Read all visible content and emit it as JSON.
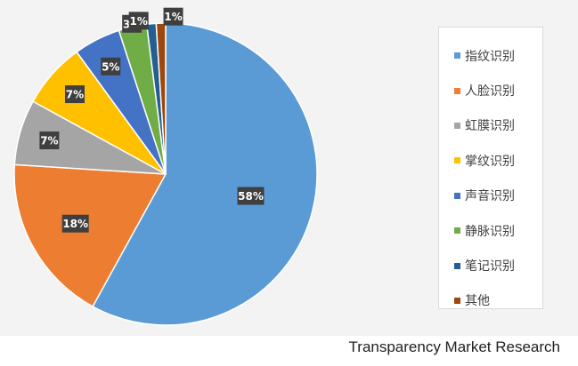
{
  "chart_data": {
    "type": "pie",
    "title": "",
    "slices": [
      {
        "label": "指纹识别",
        "value": 58,
        "display": "58%",
        "color": "#5b9bd5"
      },
      {
        "label": "人脸识别",
        "value": 18,
        "display": "18%",
        "color": "#ed7d31"
      },
      {
        "label": "虹膜识别",
        "value": 7,
        "display": "7%",
        "color": "#a5a5a5"
      },
      {
        "label": "掌纹识别",
        "value": 7,
        "display": "7%",
        "color": "#ffc000"
      },
      {
        "label": "声音识别",
        "value": 5,
        "display": "5%",
        "color": "#4472c4"
      },
      {
        "label": "静脉识别",
        "value": 3,
        "display": "3%",
        "color": "#70ad47"
      },
      {
        "label": "笔记识别",
        "value": 1,
        "display": "1%",
        "color": "#255e91"
      },
      {
        "label": "其他",
        "value": 1,
        "display": "1%",
        "color": "#9e480e"
      }
    ],
    "legend_position": "right"
  },
  "source": "Transparency Market Research"
}
